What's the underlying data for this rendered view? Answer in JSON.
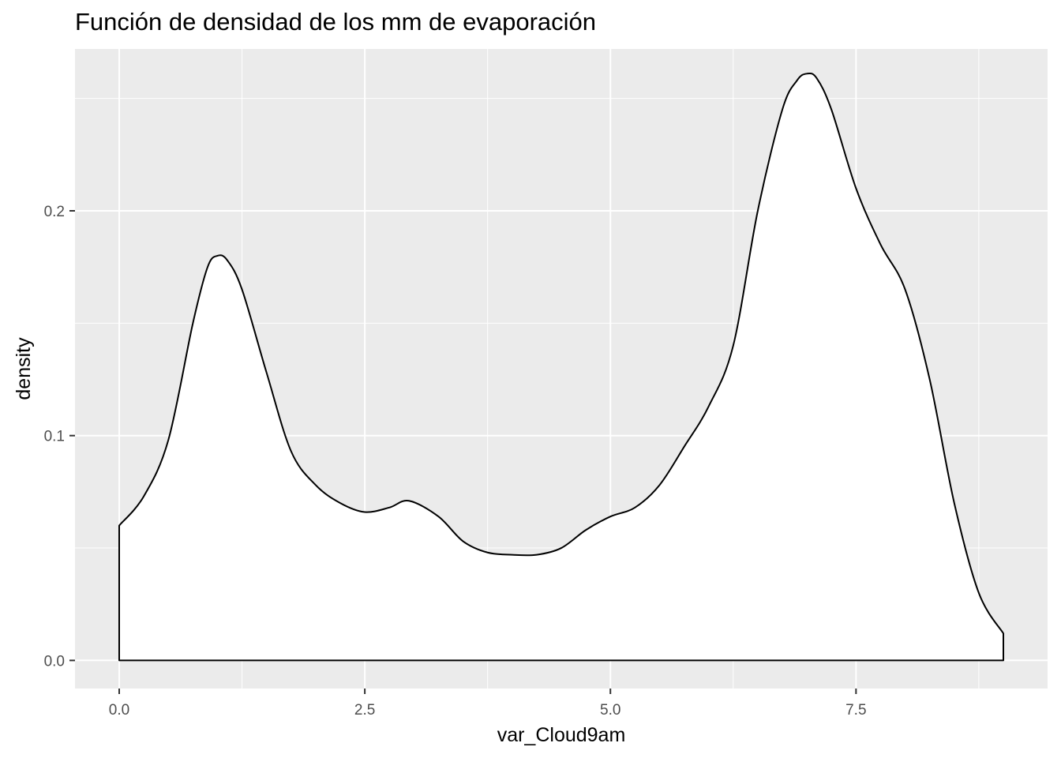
{
  "chart_data": {
    "type": "area",
    "title": "Función de densidad de los mm de evaporación",
    "xlabel": "var_Cloud9am",
    "ylabel": "density",
    "xlim": [
      -0.45,
      9.45
    ],
    "ylim": [
      -0.0125,
      0.272
    ],
    "x_ticks": [
      0.0,
      2.5,
      5.0,
      7.5
    ],
    "x_tick_labels": [
      "0.0",
      "2.5",
      "5.0",
      "7.5"
    ],
    "y_ticks": [
      0.0,
      0.1,
      0.2
    ],
    "y_tick_labels": [
      "0.0",
      "0.1",
      "0.2"
    ],
    "grid": true,
    "fill": "#ffffff",
    "line_color": "#000000",
    "panel_background": "#ebebeb",
    "grid_color": "#ffffff",
    "series": [
      {
        "x": [
          0.0,
          0.25,
          0.5,
          0.75,
          0.9,
          1.0,
          1.1,
          1.25,
          1.5,
          1.75,
          2.0,
          2.25,
          2.5,
          2.75,
          2.95,
          3.25,
          3.5,
          3.75,
          4.0,
          4.25,
          4.5,
          4.75,
          5.0,
          5.25,
          5.5,
          5.75,
          6.0,
          6.25,
          6.5,
          6.75,
          6.9,
          7.0,
          7.1,
          7.25,
          7.5,
          7.75,
          8.0,
          8.25,
          8.5,
          8.75,
          9.0
        ],
        "y": [
          0.06,
          0.073,
          0.098,
          0.15,
          0.175,
          0.18,
          0.178,
          0.165,
          0.128,
          0.093,
          0.078,
          0.07,
          0.066,
          0.068,
          0.071,
          0.064,
          0.053,
          0.048,
          0.047,
          0.047,
          0.05,
          0.058,
          0.064,
          0.068,
          0.078,
          0.095,
          0.113,
          0.14,
          0.2,
          0.245,
          0.258,
          0.261,
          0.259,
          0.245,
          0.21,
          0.185,
          0.165,
          0.125,
          0.07,
          0.03,
          0.012
        ]
      }
    ]
  }
}
